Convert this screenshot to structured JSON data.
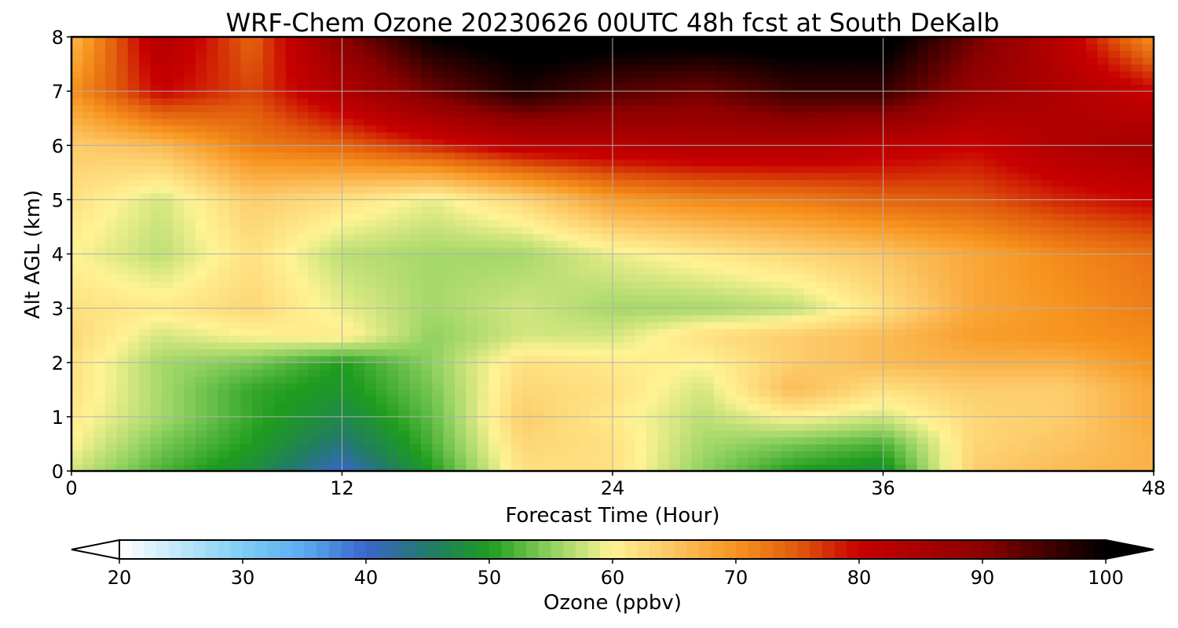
{
  "chart_data": {
    "type": "heatmap",
    "title": "WRF-Chem Ozone  20230626 00UTC 48h fcst at South DeKalb",
    "xlabel": "Forecast Time (Hour)",
    "ylabel": "Alt AGL (km)",
    "xlim": [
      0,
      48
    ],
    "ylim": [
      0,
      8
    ],
    "x_ticks": [
      "0",
      "12",
      "24",
      "36",
      "48"
    ],
    "y_ticks": [
      "0",
      "1",
      "2",
      "3",
      "4",
      "5",
      "6",
      "7",
      "8"
    ],
    "grid": true,
    "x_hours": [
      0,
      4,
      8,
      12,
      16,
      20,
      24,
      28,
      32,
      36,
      40,
      44,
      48
    ],
    "z_km": [
      0,
      0.5,
      1,
      1.5,
      2,
      2.5,
      3,
      4,
      5,
      6,
      7,
      8
    ],
    "ozone_ppbv": [
      [
        58,
        52,
        48,
        40,
        50,
        62,
        62,
        55,
        50,
        48,
        64,
        66,
        67
      ],
      [
        60,
        54,
        50,
        44,
        52,
        63,
        62,
        56,
        54,
        52,
        63,
        65,
        67
      ],
      [
        61,
        56,
        51,
        47,
        53,
        64,
        61,
        57,
        60,
        58,
        63,
        64,
        68
      ],
      [
        62,
        56,
        51,
        49,
        54,
        63,
        62,
        58,
        66,
        62,
        64,
        64,
        68
      ],
      [
        62,
        56,
        54,
        50,
        55,
        62,
        61,
        60,
        64,
        66,
        67,
        67,
        70
      ],
      [
        63,
        58,
        60,
        61,
        55,
        58,
        58,
        62,
        64,
        66,
        69,
        70,
        71
      ],
      [
        62,
        61,
        63,
        59,
        56,
        58,
        56,
        56,
        57,
        62,
        68,
        70,
        72
      ],
      [
        60,
        57,
        62,
        57,
        56,
        56,
        59,
        61,
        63,
        65,
        68,
        71,
        73
      ],
      [
        62,
        58,
        64,
        62,
        59,
        63,
        69,
        71,
        72,
        74,
        75,
        78,
        80
      ],
      [
        64,
        66,
        72,
        74,
        78,
        82,
        83,
        84,
        84,
        82,
        80,
        84,
        86
      ],
      [
        70,
        80,
        76,
        84,
        92,
        98,
        94,
        92,
        96,
        96,
        88,
        84,
        80
      ],
      [
        66,
        84,
        74,
        90,
        100,
        102,
        102,
        102,
        102,
        102,
        92,
        82,
        70
      ]
    ],
    "colorbar": {
      "label": "Ozone  (ppbv)",
      "min": 20,
      "max": 100,
      "ticks": [
        "20",
        "30",
        "40",
        "50",
        "60",
        "70",
        "80",
        "90",
        "100"
      ],
      "extend": "both",
      "stops": [
        {
          "v": 20,
          "c": "#ffffff"
        },
        {
          "v": 30,
          "c": "#7ecdf6"
        },
        {
          "v": 35,
          "c": "#5aaaf0"
        },
        {
          "v": 40,
          "c": "#3a66cc"
        },
        {
          "v": 45,
          "c": "#227a6a"
        },
        {
          "v": 50,
          "c": "#1e9c1e"
        },
        {
          "v": 55,
          "c": "#8fd160"
        },
        {
          "v": 60,
          "c": "#fff394"
        },
        {
          "v": 65,
          "c": "#fcc462"
        },
        {
          "v": 70,
          "c": "#f7941e"
        },
        {
          "v": 75,
          "c": "#e05a0c"
        },
        {
          "v": 80,
          "c": "#c80000"
        },
        {
          "v": 90,
          "c": "#8c0000"
        },
        {
          "v": 100,
          "c": "#000000"
        }
      ]
    }
  }
}
